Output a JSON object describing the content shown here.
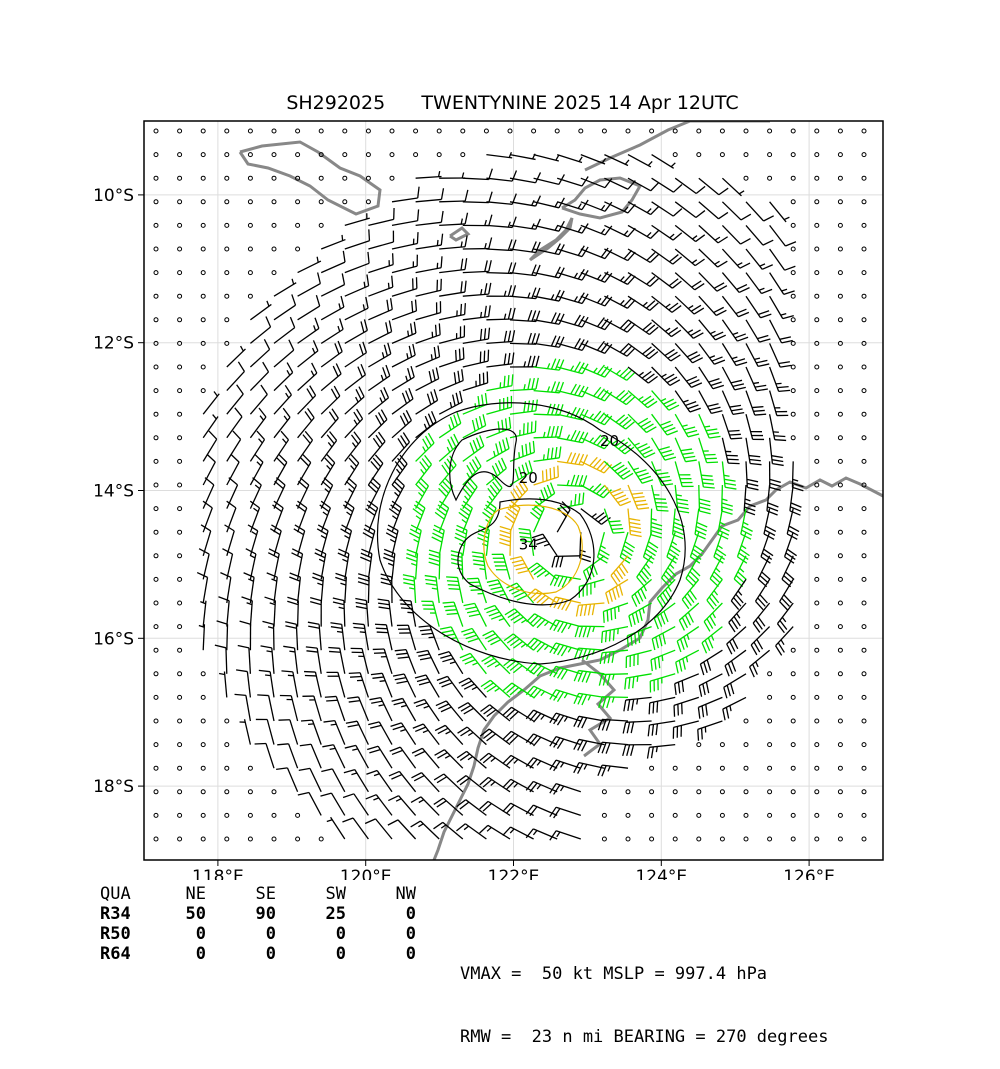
{
  "title": "SH292025      TWENTYNINE 2025 14 Apr 12UTC",
  "map": {
    "lon_range": [
      117.0,
      127.0
    ],
    "lat_range": [
      -19.0,
      -9.0
    ],
    "lon_ticks": [
      {
        "value": 118,
        "label": "118°E"
      },
      {
        "value": 120,
        "label": "120°E"
      },
      {
        "value": 122,
        "label": "122°E"
      },
      {
        "value": 124,
        "label": "124°E"
      },
      {
        "value": 126,
        "label": "126°E"
      }
    ],
    "lat_ticks": [
      {
        "value": -10,
        "label": "10°S"
      },
      {
        "value": -12,
        "label": "12°S"
      },
      {
        "value": -14,
        "label": "14°S"
      },
      {
        "value": -16,
        "label": "16°S"
      },
      {
        "value": -18,
        "label": "18°S"
      }
    ],
    "grid": true,
    "storm_center": {
      "lon": 122.8,
      "lat": -14.6
    },
    "contours": [
      {
        "label": "20",
        "label_lon": 123.3,
        "label_lat": -13.4
      },
      {
        "label": "20",
        "label_lon": 122.2,
        "label_lat": -13.9
      },
      {
        "label": "34",
        "label_lon": 122.2,
        "label_lat": -14.8
      }
    ],
    "colors": {
      "barb_default": "#000000",
      "barb_34kt": "#00e000",
      "barb_50kt": "#e8b400",
      "coastline": "#888888",
      "contour": "#000000",
      "grid": "#dddddd"
    },
    "vmax_kt": 50
  },
  "table": {
    "header": [
      "QUA",
      "NE",
      "SE",
      "SW",
      "NW"
    ],
    "rows": [
      {
        "q": "R34",
        "values": [
          "50",
          "90",
          "25",
          "0"
        ]
      },
      {
        "q": "R50",
        "values": [
          "0",
          "0",
          "0",
          "0"
        ]
      },
      {
        "q": "R64",
        "values": [
          "0",
          "0",
          "0",
          "0"
        ]
      }
    ]
  },
  "info": {
    "line1": "VMAX =  50 kt MSLP = 997.4 hPa",
    "line2": "RMW =  23 n mi BEARING = 270 degrees"
  }
}
